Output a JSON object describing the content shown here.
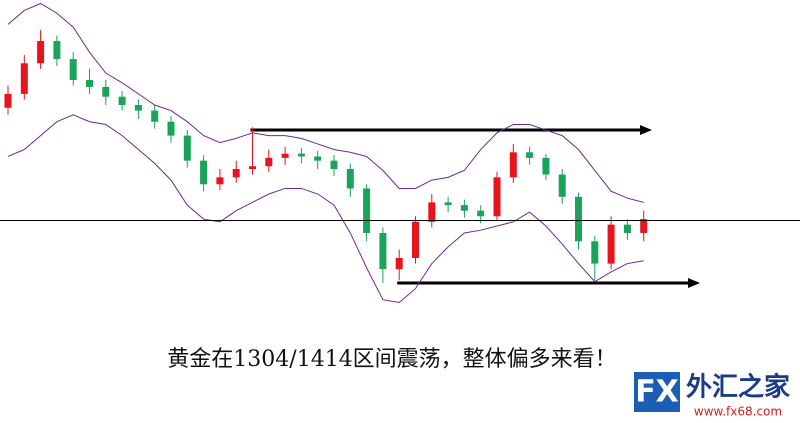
{
  "chart_data": {
    "type": "candlestick",
    "caption": "黄金在1304/1414区间震荡，整体偏多来看！",
    "open": [
      1430,
      1440,
      1462,
      1478,
      1465,
      1450,
      1445,
      1438,
      1432,
      1428,
      1420,
      1410,
      1392,
      1375,
      1380,
      1386,
      1388,
      1394,
      1397,
      1395,
      1392,
      1386,
      1372,
      1340,
      1314,
      1322,
      1348,
      1362,
      1360,
      1356,
      1352,
      1380,
      1398,
      1394,
      1382,
      1366,
      1334,
      1318,
      1346,
      1340
    ],
    "high": [
      1446,
      1468,
      1486,
      1482,
      1470,
      1458,
      1450,
      1442,
      1436,
      1432,
      1424,
      1414,
      1396,
      1386,
      1392,
      1416,
      1400,
      1402,
      1401,
      1399,
      1396,
      1390,
      1375,
      1344,
      1328,
      1352,
      1368,
      1366,
      1364,
      1360,
      1384,
      1404,
      1402,
      1397,
      1386,
      1369,
      1338,
      1352,
      1350,
      1356
    ],
    "low": [
      1425,
      1436,
      1458,
      1460,
      1446,
      1440,
      1432,
      1428,
      1422,
      1415,
      1405,
      1387,
      1370,
      1371,
      1376,
      1382,
      1384,
      1389,
      1390,
      1386,
      1381,
      1366,
      1334,
      1304,
      1306,
      1318,
      1344,
      1355,
      1351,
      1347,
      1349,
      1376,
      1389,
      1378,
      1361,
      1328,
      1306,
      1314,
      1335,
      1334
    ],
    "close": [
      1440,
      1462,
      1478,
      1465,
      1450,
      1445,
      1438,
      1432,
      1428,
      1420,
      1410,
      1392,
      1375,
      1380,
      1386,
      1388,
      1394,
      1397,
      1395,
      1392,
      1386,
      1372,
      1340,
      1314,
      1322,
      1348,
      1362,
      1360,
      1356,
      1352,
      1380,
      1398,
      1394,
      1382,
      1366,
      1334,
      1318,
      1346,
      1340,
      1350
    ],
    "upper_band": [
      1490,
      1500,
      1505,
      1498,
      1488,
      1470,
      1455,
      1448,
      1440,
      1432,
      1428,
      1420,
      1410,
      1405,
      1408,
      1412,
      1410,
      1410,
      1408,
      1404,
      1400,
      1398,
      1395,
      1385,
      1372,
      1372,
      1378,
      1380,
      1385,
      1400,
      1412,
      1418,
      1418,
      1414,
      1410,
      1400,
      1385,
      1370,
      1365,
      1362
    ],
    "lower_band": [
      1395,
      1400,
      1410,
      1420,
      1425,
      1420,
      1418,
      1410,
      1400,
      1390,
      1378,
      1360,
      1350,
      1348,
      1356,
      1362,
      1368,
      1372,
      1372,
      1368,
      1360,
      1340,
      1315,
      1292,
      1290,
      1300,
      1318,
      1330,
      1340,
      1342,
      1345,
      1348,
      1355,
      1345,
      1332,
      1318,
      1305,
      1312,
      1318,
      1320
    ],
    "up_color": "#e8141c",
    "down_color": "#1aa35a",
    "band_color": "#6a2a9a",
    "resistance": 1414,
    "support": 1304,
    "reference_line": 1349,
    "ylim": [
      1290,
      1495
    ]
  },
  "logo": {
    "brand": "FX",
    "name": "外汇之家",
    "url": "www.fx68.com"
  }
}
